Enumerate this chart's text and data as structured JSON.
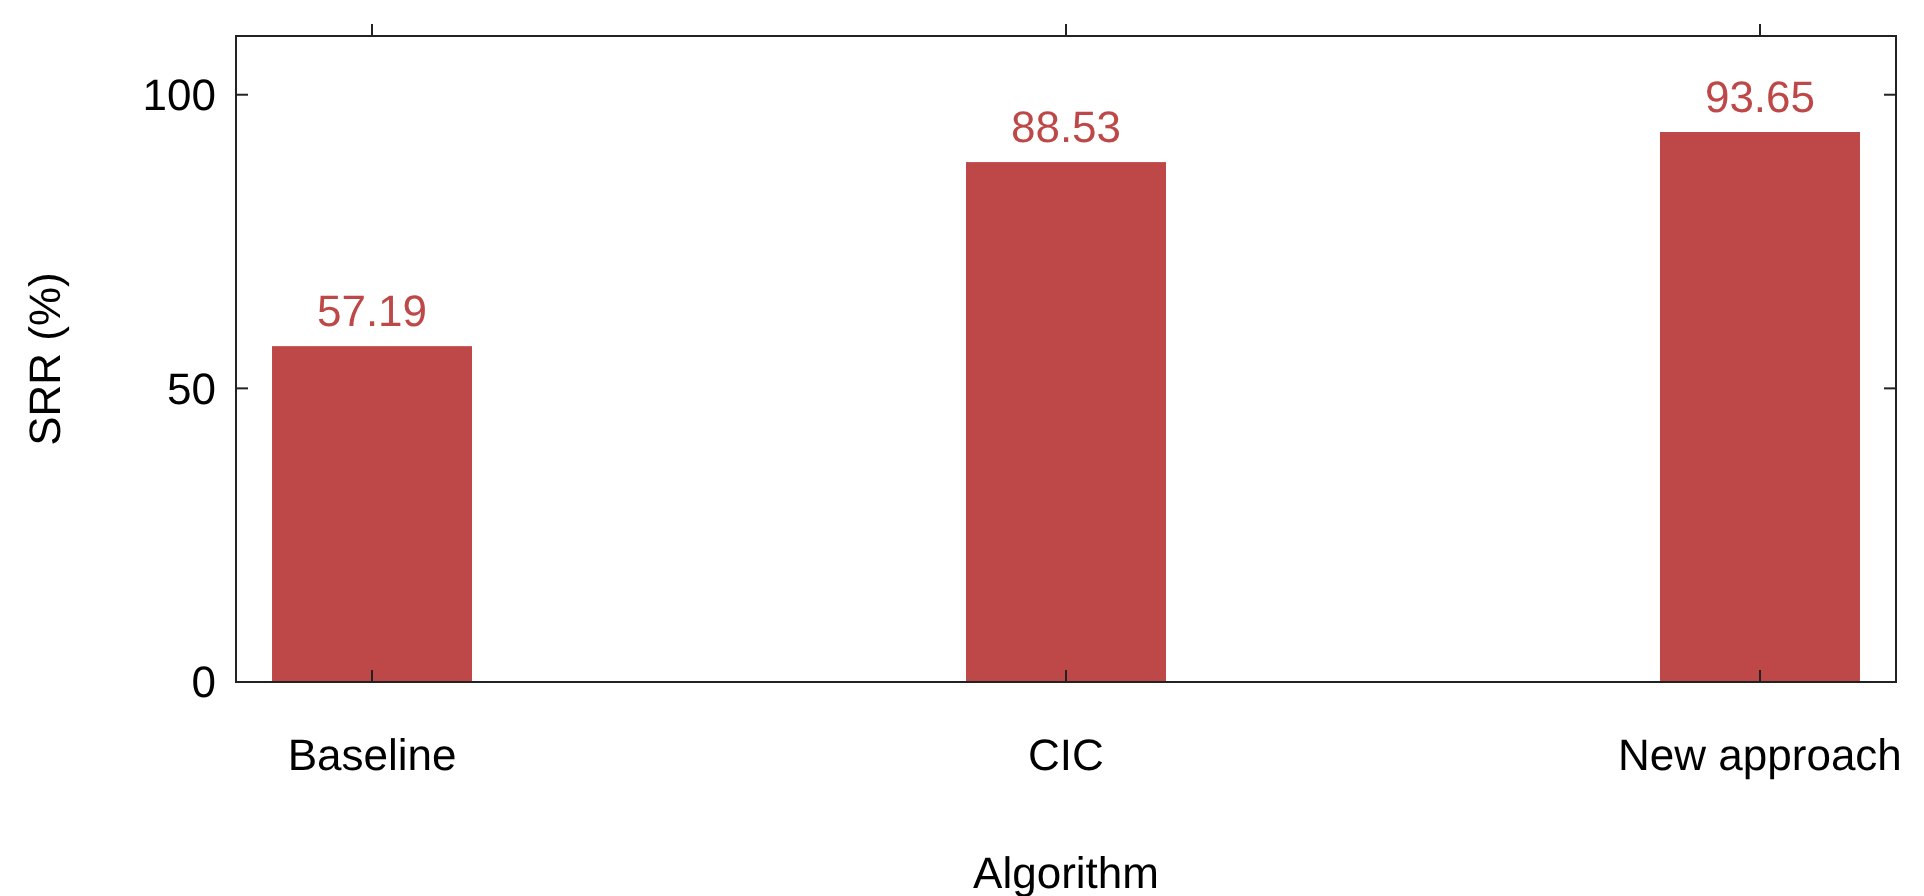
{
  "chart_data": {
    "type": "bar",
    "xlabel": "Algorithm",
    "ylabel": "SRR (%)",
    "categories": [
      "Baseline",
      "CIC",
      "New approach"
    ],
    "values": [
      57.19,
      88.53,
      93.65
    ],
    "color": "#be4848",
    "ylim": [
      0,
      110
    ],
    "yticks": [
      0,
      50,
      100
    ],
    "grid": false,
    "data_labels": true
  }
}
